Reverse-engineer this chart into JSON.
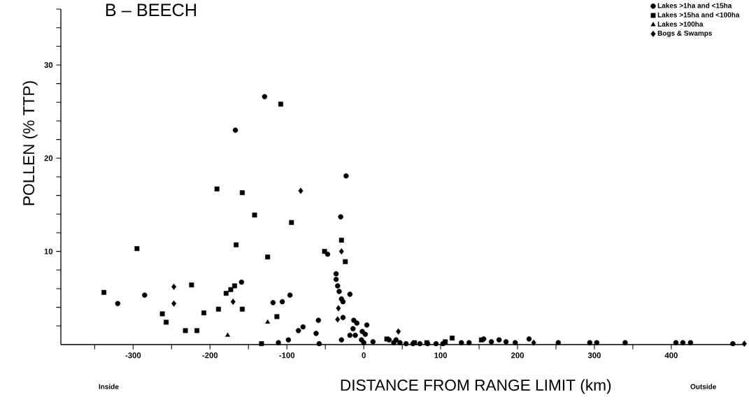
{
  "chart_data": {
    "type": "scatter",
    "title": "B – BEECH",
    "xlabel": "DISTANCE FROM RANGE LIMIT (km)",
    "ylabel": "POLLEN (% TTP)",
    "annotations": [
      "Inside",
      "Outside"
    ],
    "xlim": [
      -394,
      495
    ],
    "ylim": [
      0,
      36
    ],
    "xticks": [
      {
        "value": -350,
        "label": null
      },
      -300,
      {
        "value": -250,
        "label": null
      },
      -200,
      {
        "value": -150,
        "label": null
      },
      -100,
      {
        "value": -50,
        "label": null
      },
      0,
      {
        "value": 50,
        "label": null
      },
      100,
      {
        "value": 150,
        "label": null
      },
      200,
      {
        "value": 250,
        "label": null
      },
      300,
      {
        "value": 350,
        "label": null
      },
      400
    ],
    "yticks": [
      {
        "value": 2,
        "label": null
      },
      {
        "value": 4,
        "label": null
      },
      {
        "value": 6,
        "label": null
      },
      {
        "value": 8,
        "label": null
      },
      10,
      {
        "value": 12,
        "label": null
      },
      {
        "value": 14,
        "label": null
      },
      {
        "value": 16,
        "label": null
      },
      {
        "value": 18,
        "label": null
      },
      20,
      {
        "value": 22,
        "label": null
      },
      {
        "value": 24,
        "label": null
      },
      {
        "value": 26,
        "label": null
      },
      {
        "value": 28,
        "label": null
      },
      30,
      {
        "value": 32,
        "label": null
      },
      {
        "value": 34,
        "label": null
      },
      {
        "value": 36,
        "label": null
      }
    ],
    "legend": "top right",
    "series": [
      {
        "name": "Lakes >1ha and <15ha",
        "color": "#000000",
        "marker": "circle",
        "x": [
          -320,
          -285,
          -167,
          -159,
          -129,
          -118,
          -111,
          -106,
          -98,
          -96,
          -85,
          -79,
          -62,
          -59,
          -58,
          -47,
          -36,
          -36,
          -34,
          -32,
          -29,
          -29,
          -27,
          -27,
          -23,
          -30,
          -18,
          -18,
          -14,
          -13,
          -11,
          -9,
          -3,
          -2,
          0,
          2,
          4,
          12,
          33,
          39,
          42,
          47,
          55,
          64,
          73,
          83,
          94,
          103,
          127,
          137,
          156,
          166,
          176,
          185,
          197,
          215,
          253,
          294,
          303,
          340,
          406,
          415,
          425,
          480
        ],
        "values": [
          4.4,
          5.3,
          23.0,
          6.7,
          26.6,
          4.5,
          0.2,
          4.6,
          0.5,
          5.3,
          1.5,
          1.9,
          1.2,
          2.6,
          0.1,
          9.7,
          7.6,
          7.0,
          6.3,
          5.7,
          4.9,
          0.5,
          4.6,
          2.9,
          18.1,
          13.7,
          5.4,
          1.0,
          1.7,
          2.6,
          1.0,
          2.3,
          0.5,
          1.4,
          0.2,
          1.1,
          2.1,
          0.3,
          0.5,
          0.2,
          0.5,
          0.2,
          0.1,
          0.1,
          0.1,
          0.1,
          0.1,
          0.1,
          0.2,
          0.2,
          0.6,
          0.3,
          0.5,
          0.3,
          0.2,
          0.6,
          0.2,
          0.2,
          0.2,
          0.2,
          0.2,
          0.2,
          0.2,
          0.1
        ]
      },
      {
        "name": "Lakes >15ha and <100ha",
        "color": "#000000",
        "marker": "square",
        "x": [
          -338,
          -295,
          -262,
          -257,
          -232,
          -224,
          -217,
          -208,
          -191,
          -189,
          -179,
          -173,
          -168,
          -166,
          -158,
          -158,
          -142,
          -133,
          -125,
          -113,
          -108,
          -94,
          -51,
          -29,
          -24,
          30,
          66,
          82,
          106,
          115,
          153
        ],
        "values": [
          5.6,
          10.3,
          3.3,
          2.4,
          1.5,
          6.4,
          1.5,
          3.4,
          16.7,
          3.8,
          5.5,
          5.9,
          6.3,
          10.7,
          16.3,
          3.8,
          13.9,
          0.1,
          9.4,
          3.0,
          25.8,
          13.1,
          10.0,
          11.2,
          8.9,
          0.6,
          0.2,
          0.2,
          0.3,
          0.7,
          0.5
        ]
      },
      {
        "name": "Lakes >100ha",
        "color": "#000000",
        "marker": "triangle",
        "x": [
          -177,
          -125
        ],
        "values": [
          1.0,
          2.4
        ]
      },
      {
        "name": "Bogs & Swamps",
        "color": "#000000",
        "marker": "diamond",
        "x": [
          -247,
          -247,
          -170,
          -82,
          -29,
          -33,
          -34,
          45,
          221,
          495
        ],
        "values": [
          6.2,
          4.4,
          4.6,
          16.5,
          10.0,
          3.9,
          2.7,
          1.4,
          0.2,
          0.1
        ]
      }
    ]
  }
}
